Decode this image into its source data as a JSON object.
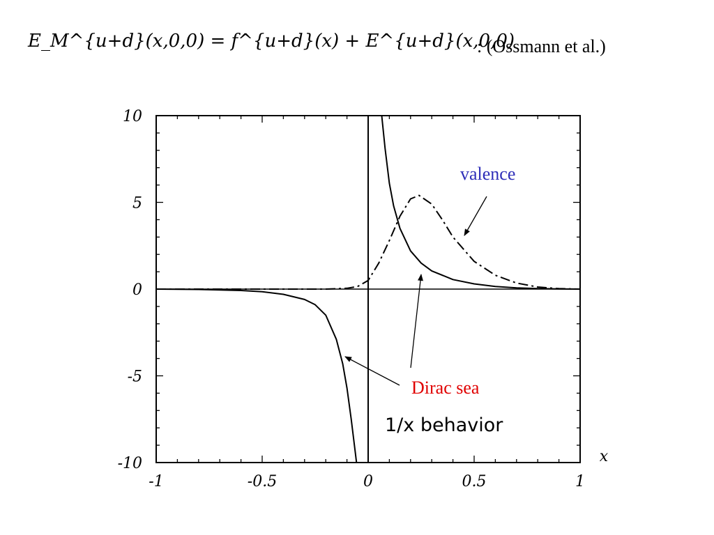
{
  "header": {
    "equation": "E_M^{u+d}(x,0,0) = f^{u+d}(x) + E^{u+d}(x,0,0)",
    "citation": ":  (Ossmann et al.)"
  },
  "chart_data": {
    "type": "line",
    "xlabel": "x",
    "ylabel": "",
    "xlim": [
      -1,
      1
    ],
    "ylim": [
      -10,
      10
    ],
    "x_ticks": [
      "-1",
      "-0.5",
      "0",
      "0.5",
      "1"
    ],
    "y_ticks": [
      "10",
      "5",
      "0",
      "-5",
      "-10"
    ],
    "grid": false,
    "series": [
      {
        "name": "valence",
        "style": "dash-dot",
        "x": [
          -1,
          -0.5,
          -0.3,
          -0.2,
          -0.1,
          -0.05,
          0,
          0.05,
          0.1,
          0.15,
          0.2,
          0.24,
          0.3,
          0.35,
          0.4,
          0.5,
          0.6,
          0.7,
          0.8,
          0.9,
          1
        ],
        "y": [
          0,
          0,
          0,
          0,
          0.05,
          0.15,
          0.5,
          1.5,
          2.8,
          4.2,
          5.2,
          5.4,
          4.9,
          4.0,
          3.0,
          1.6,
          0.8,
          0.35,
          0.12,
          0.03,
          0
        ]
      },
      {
        "name": "Dirac sea",
        "style": "solid",
        "x": [
          -1,
          -0.8,
          -0.6,
          -0.5,
          -0.4,
          -0.3,
          -0.25,
          -0.2,
          -0.15,
          -0.12,
          -0.1,
          -0.08,
          -0.06,
          -0.05,
          0.06,
          0.08,
          0.1,
          0.12,
          0.15,
          0.2,
          0.25,
          0.3,
          0.4,
          0.5,
          0.6,
          0.7,
          0.8,
          0.9,
          1
        ],
        "y": [
          0,
          -0.02,
          -0.08,
          -0.15,
          -0.3,
          -0.6,
          -0.9,
          -1.5,
          -2.9,
          -4.3,
          -5.7,
          -7.5,
          -9.5,
          -10.5,
          10.5,
          8.1,
          6.1,
          4.8,
          3.5,
          2.2,
          1.5,
          1.05,
          0.55,
          0.3,
          0.15,
          0.07,
          0.03,
          0.01,
          0
        ]
      }
    ],
    "annotations": [
      {
        "text": "valence",
        "color": "#2e2eb8"
      },
      {
        "text": "Dirac sea",
        "color": "#e00000"
      },
      {
        "text": "1/x behavior",
        "color": "#000000"
      }
    ]
  }
}
